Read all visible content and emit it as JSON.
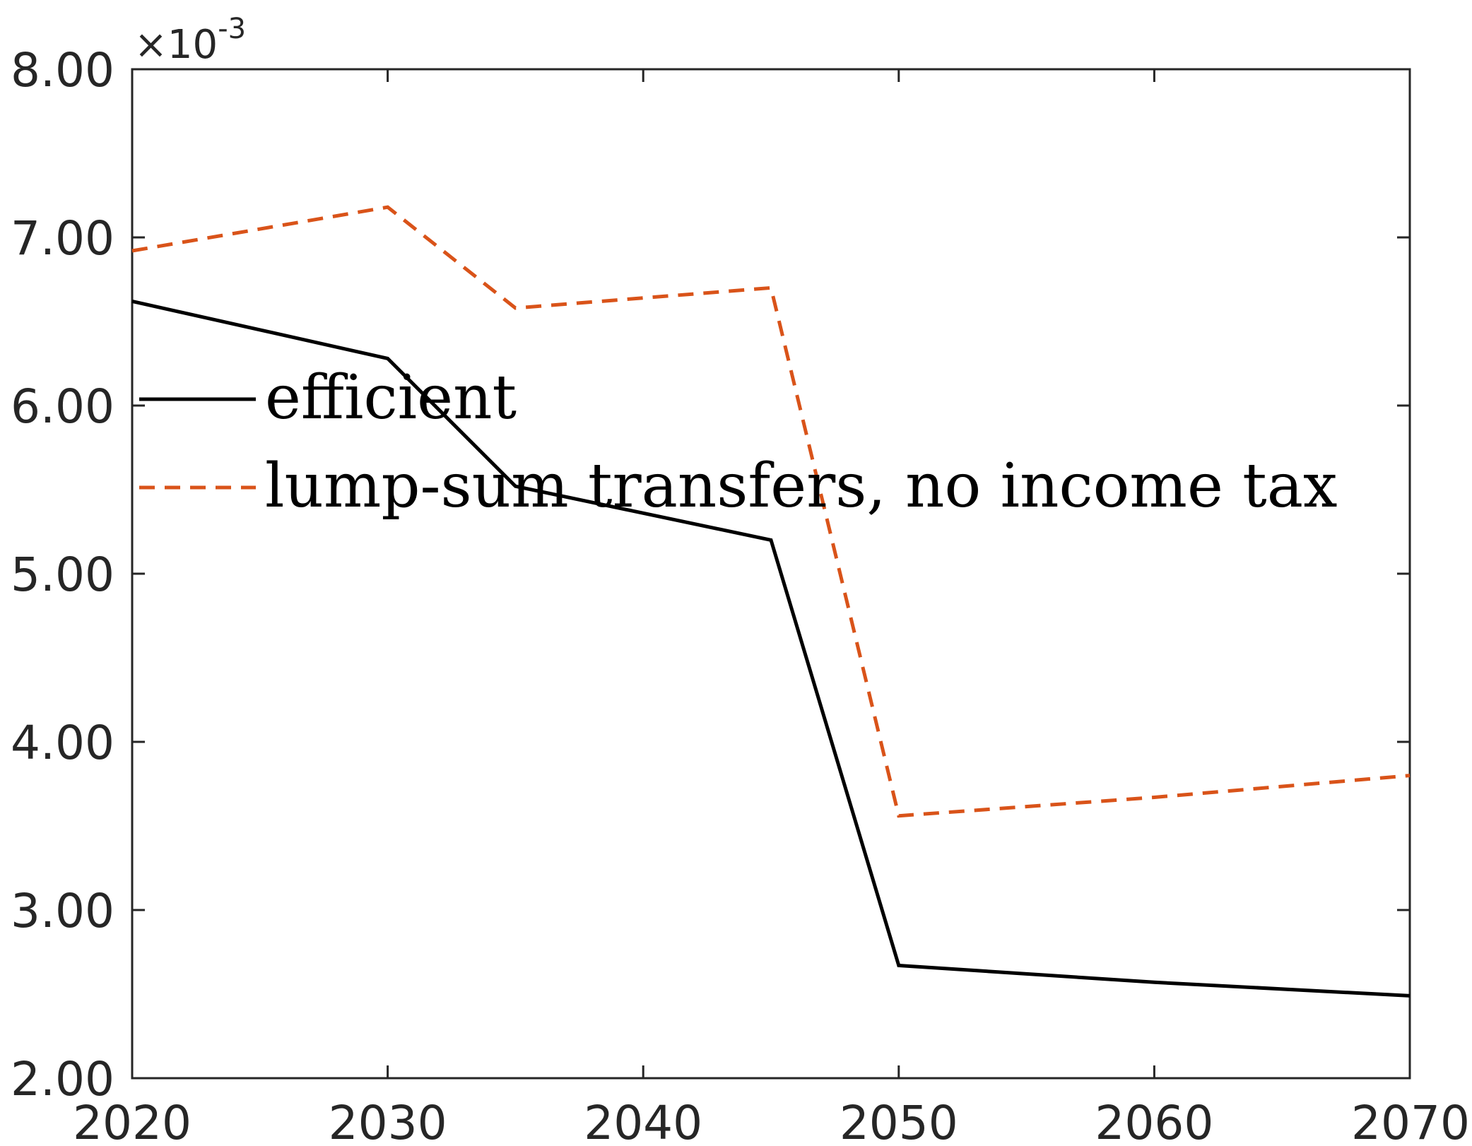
{
  "chart_data": {
    "type": "line",
    "title": "",
    "xlabel": "",
    "ylabel": "",
    "xlim": [
      2020,
      2070
    ],
    "ylim": [
      2.0,
      8.0
    ],
    "xticks": [
      2020,
      2030,
      2040,
      2050,
      2060,
      2070
    ],
    "yticks": [
      2.0,
      3.0,
      4.0,
      5.0,
      6.0,
      7.0,
      8.0
    ],
    "xtick_labels": [
      "2020",
      "2030",
      "2040",
      "2050",
      "2060",
      "2070"
    ],
    "ytick_labels": [
      "2.00",
      "3.00",
      "4.00",
      "5.00",
      "6.00",
      "7.00",
      "8.00"
    ],
    "y_multiplier_label": "×10",
    "y_multiplier_exponent": "-3",
    "grid": false,
    "legend_position": "center-left",
    "series": [
      {
        "name": "efficient",
        "color": "#000000",
        "style": "solid",
        "x": [
          2020,
          2030,
          2035,
          2045,
          2050,
          2060,
          2070
        ],
        "y": [
          6.62,
          6.28,
          5.52,
          5.2,
          2.67,
          2.57,
          2.49
        ]
      },
      {
        "name": "lump-sum transfers, no income tax",
        "color": "#D95319",
        "style": "dashed",
        "x": [
          2020,
          2030,
          2035,
          2045,
          2050,
          2060,
          2070
        ],
        "y": [
          6.92,
          7.18,
          6.58,
          6.7,
          3.56,
          3.67,
          3.8
        ]
      }
    ]
  }
}
